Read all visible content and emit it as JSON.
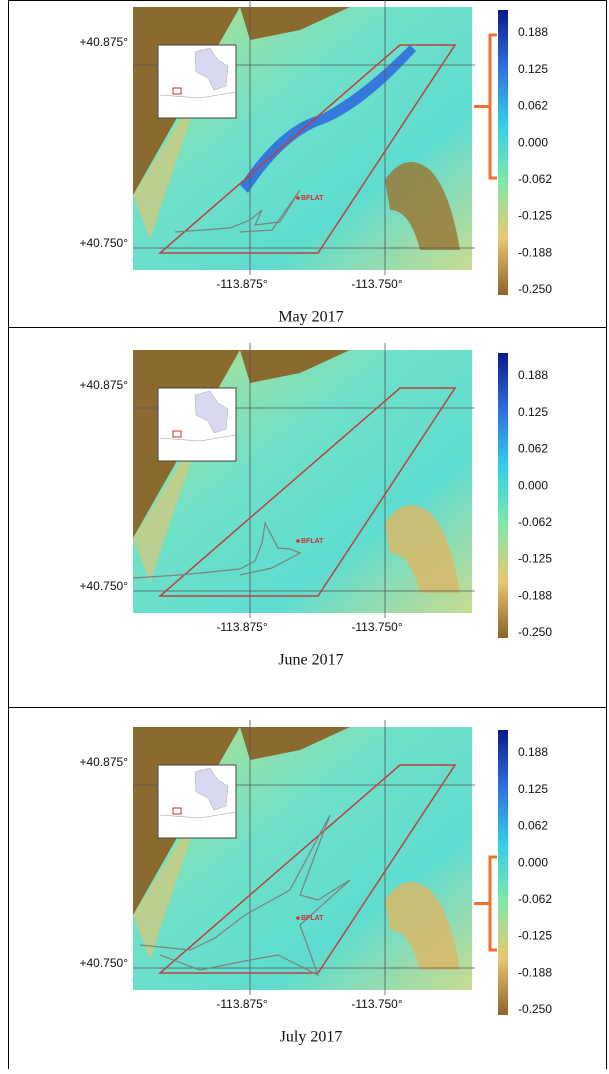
{
  "panels": [
    {
      "latitude_labels": [
        "+40.875°",
        "+40.750°"
      ],
      "longitude_labels": [
        "-113.875°",
        "-113.750°"
      ],
      "point_label": "BFLAT",
      "colorbar_ticks": [
        "0.188",
        "0.125",
        "0.062",
        "0.000",
        "-0.062",
        "-0.125",
        "-0.188",
        "-0.250"
      ],
      "caption": "May 2017"
    },
    {
      "latitude_labels": [
        "+40.875°",
        "+40.750°"
      ],
      "longitude_labels": [
        "-113.875°",
        "-113.750°"
      ],
      "point_label": "BFLAT",
      "colorbar_ticks": [
        "0.188",
        "0.125",
        "0.062",
        "0.000",
        "-0.062",
        "-0.125",
        "-0.188",
        "-0.250"
      ],
      "caption": "June 2017"
    },
    {
      "latitude_labels": [
        "+40.875°",
        "+40.750°"
      ],
      "longitude_labels": [
        "-113.875°",
        "-113.750°"
      ],
      "point_label": "BFLAT",
      "colorbar_ticks": [
        "0.188",
        "0.125",
        "0.062",
        "0.000",
        "-0.062",
        "-0.125",
        "-0.188",
        "-0.250"
      ],
      "caption": "July 2017"
    }
  ]
}
